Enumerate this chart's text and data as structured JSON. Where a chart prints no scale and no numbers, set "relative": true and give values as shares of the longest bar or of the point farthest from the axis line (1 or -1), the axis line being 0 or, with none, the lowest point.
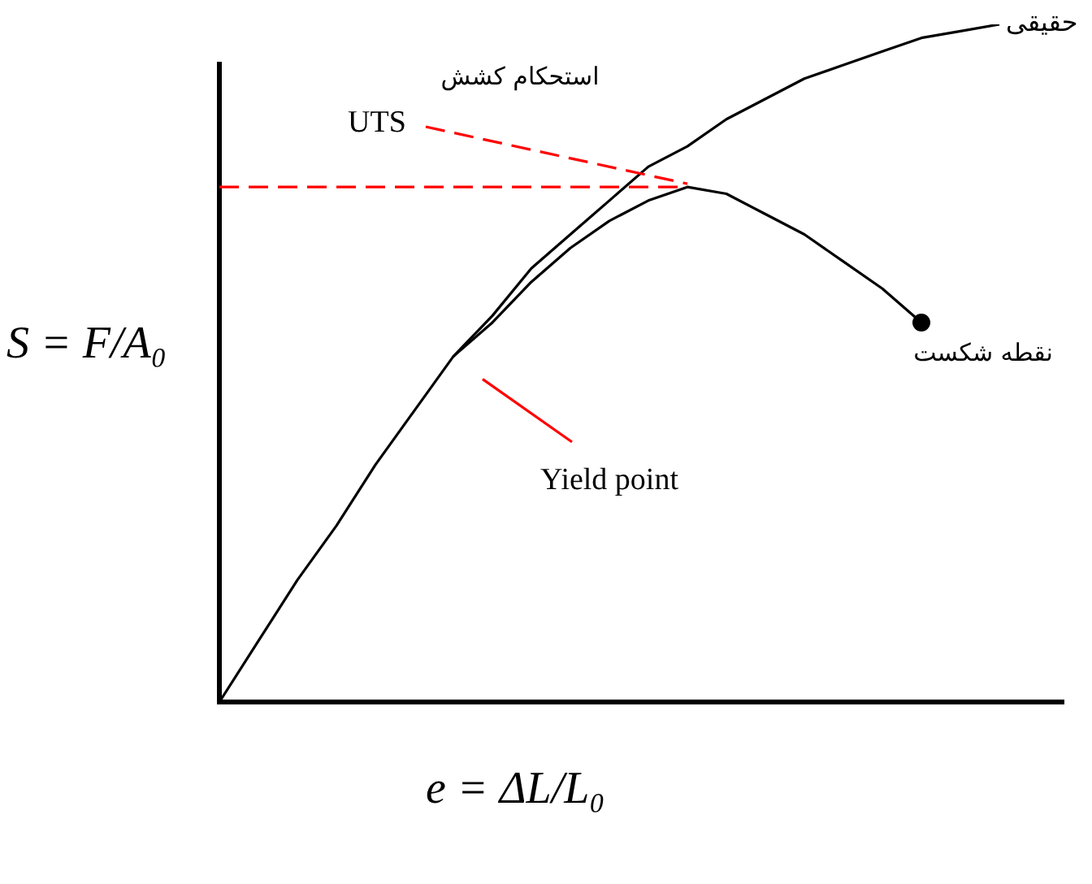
{
  "chart_data": {
    "type": "line",
    "relative": true,
    "xlabel": "e = ΔL/L₀",
    "ylabel": "S = F/A₀",
    "categories": [
      null,
      null,
      null,
      null,
      null,
      null,
      null,
      null,
      null,
      null,
      null,
      null,
      null,
      null,
      null,
      null,
      null,
      null,
      null,
      null,
      null
    ],
    "series": [
      {
        "name": "حقیقی",
        "color": "#000000",
        "values": [
          0,
          0.09,
          0.18,
          0.26,
          0.35,
          0.43,
          0.51,
          0.57,
          0.64,
          0.69,
          0.74,
          0.79,
          0.82,
          0.86,
          0.89,
          0.92,
          0.94,
          0.96,
          0.98,
          0.99,
          1
        ]
      },
      {
        "color": "#000000",
        "values": [
          null,
          null,
          null,
          null,
          null,
          null,
          0.51,
          0.56,
          0.62,
          0.67,
          0.71,
          0.74,
          0.76,
          0.75,
          0.72,
          0.69,
          0.65,
          0.61,
          0.56,
          null,
          null
        ]
      }
    ],
    "ref_lines": [
      {
        "axis": "y",
        "value": 0.76,
        "color": "#ff0000",
        "line_style": "dashed"
      }
    ],
    "annotations": [
      "استحکام کشش",
      "UTS",
      "Yield point",
      "نقطه شکست"
    ],
    "grid": false,
    "legend": false,
    "marker": "none",
    "line_style": "solid"
  }
}
